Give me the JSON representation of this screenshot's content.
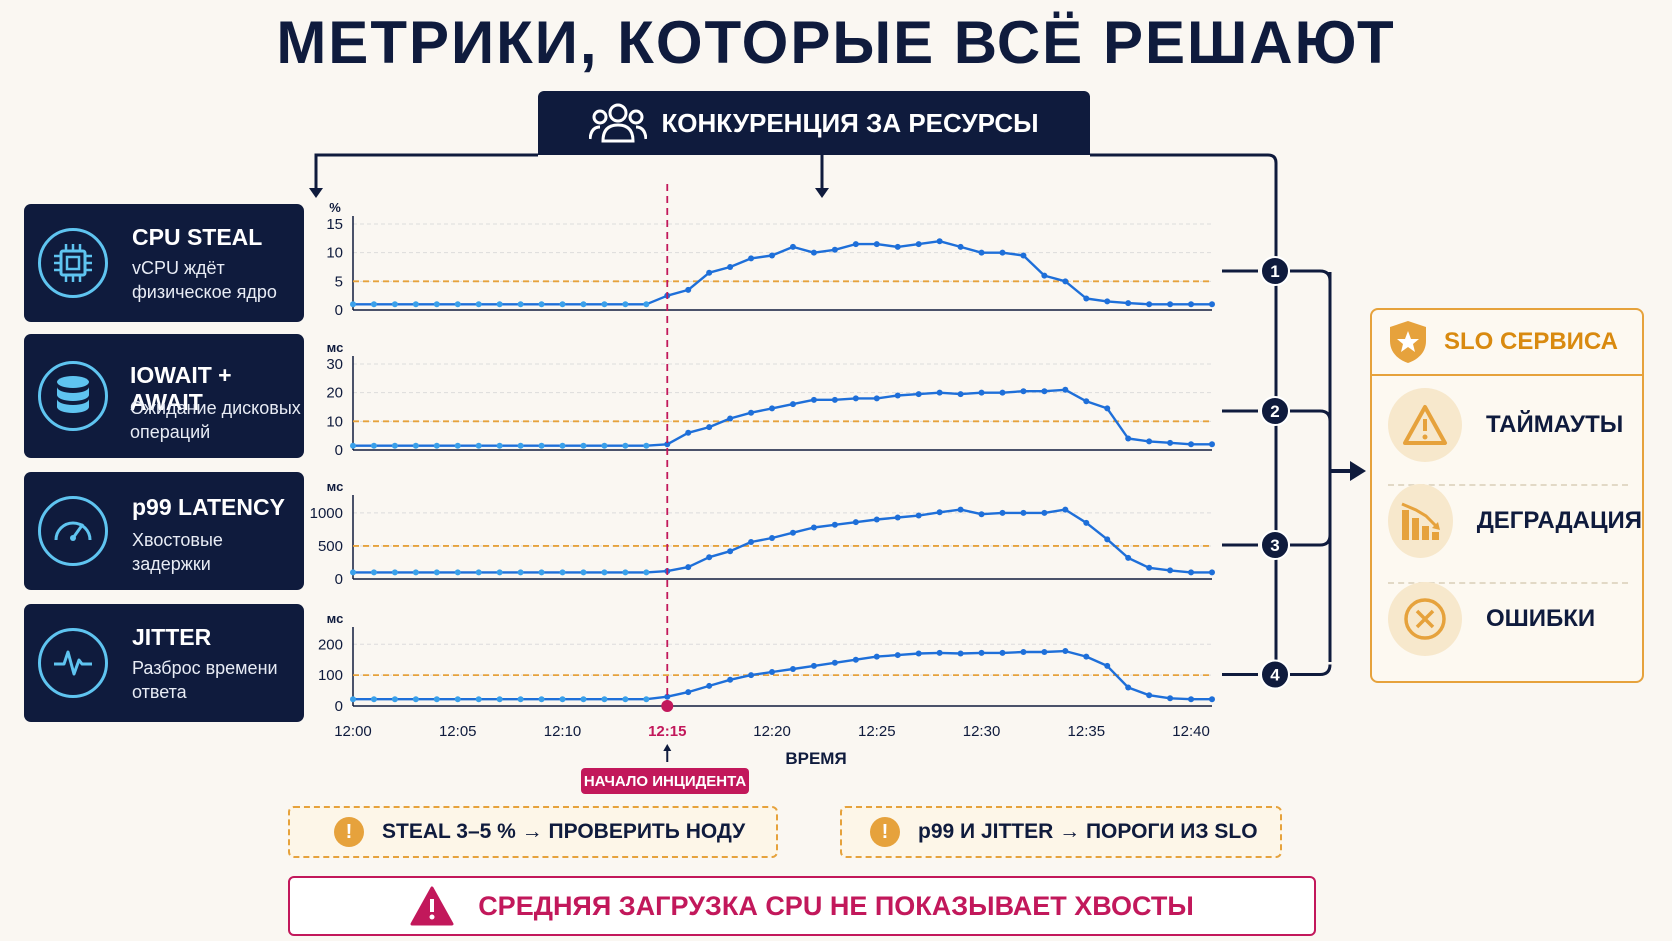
{
  "title": "МЕТРИКИ, КОТОРЫЕ ВСЁ РЕШАЮТ",
  "header": {
    "label": "КОНКУРЕНЦИЯ ЗА РЕСУРСЫ",
    "icon": "users-icon"
  },
  "cards": [
    {
      "title": "CPU STEAL",
      "desc1": "vCPU ждёт",
      "desc2": "физическое ядро",
      "icon": "cpu-chip-icon"
    },
    {
      "title": "IOWAIT + AWAIT",
      "desc1": "Ожидание дисковых",
      "desc2": "операций",
      "icon": "database-icon"
    },
    {
      "title": "p99 LATENCY",
      "desc1": "Хвостовые",
      "desc2": "задержки",
      "icon": "gauge-icon"
    },
    {
      "title": "JITTER",
      "desc1": "Разброс времени",
      "desc2": "ответа",
      "icon": "pulse-icon"
    }
  ],
  "colors": {
    "navy": "#0f1b3d",
    "line": "#1e6fd9",
    "point": "#3aa0ea",
    "threshold": "#e6a23c",
    "incident": "#c2185b",
    "accent": "#5fc4f0"
  },
  "chart_data": [
    {
      "type": "line",
      "unit": "%",
      "yticks": [
        0,
        5,
        10,
        15
      ],
      "ylim": [
        0,
        15
      ],
      "threshold": 5,
      "x": [
        "12:00",
        "12:01",
        "12:02",
        "12:03",
        "12:04",
        "12:05",
        "12:06",
        "12:07",
        "12:08",
        "12:09",
        "12:10",
        "12:11",
        "12:12",
        "12:13",
        "12:14",
        "12:15",
        "12:16",
        "12:17",
        "12:18",
        "12:19",
        "12:20",
        "12:21",
        "12:22",
        "12:23",
        "12:24",
        "12:25",
        "12:26",
        "12:27",
        "12:28",
        "12:29",
        "12:30",
        "12:31",
        "12:32",
        "12:33",
        "12:34",
        "12:35",
        "12:36",
        "12:37",
        "12:38",
        "12:39",
        "12:40",
        "12:41"
      ],
      "values": [
        1,
        1,
        1,
        1,
        1,
        1,
        1,
        1,
        1,
        1,
        1,
        1,
        1,
        1,
        1,
        2.5,
        3.5,
        6.5,
        7.5,
        9,
        9.5,
        11,
        10,
        10.5,
        11.5,
        11.5,
        11,
        11.5,
        12,
        11,
        10,
        10,
        9.5,
        6,
        5,
        2,
        1.5,
        1.2,
        1,
        1,
        1,
        1
      ]
    },
    {
      "type": "line",
      "unit": "мс",
      "yticks": [
        0,
        10,
        20,
        30
      ],
      "ylim": [
        0,
        30
      ],
      "threshold": 10,
      "x": [
        "12:00",
        "12:01",
        "12:02",
        "12:03",
        "12:04",
        "12:05",
        "12:06",
        "12:07",
        "12:08",
        "12:09",
        "12:10",
        "12:11",
        "12:12",
        "12:13",
        "12:14",
        "12:15",
        "12:16",
        "12:17",
        "12:18",
        "12:19",
        "12:20",
        "12:21",
        "12:22",
        "12:23",
        "12:24",
        "12:25",
        "12:26",
        "12:27",
        "12:28",
        "12:29",
        "12:30",
        "12:31",
        "12:32",
        "12:33",
        "12:34",
        "12:35",
        "12:36",
        "12:37",
        "12:38",
        "12:39",
        "12:40",
        "12:41"
      ],
      "values": [
        1.5,
        1.5,
        1.5,
        1.5,
        1.5,
        1.5,
        1.5,
        1.5,
        1.5,
        1.5,
        1.5,
        1.5,
        1.5,
        1.5,
        1.5,
        2,
        6,
        8,
        11,
        13,
        14.5,
        16,
        17.5,
        17.5,
        18,
        18,
        19,
        19.5,
        20,
        19.5,
        20,
        20,
        20.5,
        20.5,
        21,
        17,
        14.5,
        4,
        3,
        2.5,
        2,
        2
      ]
    },
    {
      "type": "line",
      "unit": "мс",
      "yticks": [
        0,
        500,
        1000
      ],
      "ylim": [
        0,
        1150
      ],
      "threshold": 500,
      "x": [
        "12:00",
        "12:01",
        "12:02",
        "12:03",
        "12:04",
        "12:05",
        "12:06",
        "12:07",
        "12:08",
        "12:09",
        "12:10",
        "12:11",
        "12:12",
        "12:13",
        "12:14",
        "12:15",
        "12:16",
        "12:17",
        "12:18",
        "12:19",
        "12:20",
        "12:21",
        "12:22",
        "12:23",
        "12:24",
        "12:25",
        "12:26",
        "12:27",
        "12:28",
        "12:29",
        "12:30",
        "12:31",
        "12:32",
        "12:33",
        "12:34",
        "12:35",
        "12:36",
        "12:37",
        "12:38",
        "12:39",
        "12:40",
        "12:41"
      ],
      "values": [
        100,
        100,
        100,
        100,
        100,
        100,
        100,
        100,
        100,
        100,
        100,
        100,
        100,
        100,
        100,
        120,
        180,
        330,
        420,
        560,
        620,
        700,
        780,
        820,
        860,
        900,
        930,
        960,
        1010,
        1050,
        980,
        1000,
        1000,
        1000,
        1050,
        850,
        600,
        320,
        170,
        130,
        100,
        100
      ]
    },
    {
      "type": "line",
      "unit": "мс",
      "yticks": [
        0,
        100,
        200
      ],
      "ylim": [
        0,
        230
      ],
      "threshold": 100,
      "x": [
        "12:00",
        "12:01",
        "12:02",
        "12:03",
        "12:04",
        "12:05",
        "12:06",
        "12:07",
        "12:08",
        "12:09",
        "12:10",
        "12:11",
        "12:12",
        "12:13",
        "12:14",
        "12:15",
        "12:16",
        "12:17",
        "12:18",
        "12:19",
        "12:20",
        "12:21",
        "12:22",
        "12:23",
        "12:24",
        "12:25",
        "12:26",
        "12:27",
        "12:28",
        "12:29",
        "12:30",
        "12:31",
        "12:32",
        "12:33",
        "12:34",
        "12:35",
        "12:36",
        "12:37",
        "12:38",
        "12:39",
        "12:40",
        "12:41"
      ],
      "values": [
        22,
        22,
        22,
        22,
        22,
        22,
        22,
        22,
        22,
        22,
        22,
        22,
        22,
        22,
        22,
        30,
        45,
        65,
        85,
        100,
        110,
        120,
        130,
        140,
        150,
        160,
        165,
        170,
        172,
        170,
        172,
        172,
        175,
        175,
        178,
        160,
        130,
        60,
        35,
        25,
        22,
        22
      ]
    }
  ],
  "x_ticks": [
    "12:00",
    "12:05",
    "12:10",
    "12:15",
    "12:20",
    "12:25",
    "12:30",
    "12:35",
    "12:40"
  ],
  "x_axis_label": "ВРЕМЯ",
  "incident": {
    "label": "НАЧАЛО ИНЦИДЕНТА",
    "time": "12:15",
    "index": 15
  },
  "numbers": [
    "1",
    "2",
    "3",
    "4"
  ],
  "slo": {
    "title": "SLO СЕРВИСА",
    "items": [
      {
        "label": "ТАЙМАУТЫ",
        "icon": "warning-triangle-icon"
      },
      {
        "label": "ДЕГРАДАЦИЯ",
        "icon": "bar-chart-down-icon"
      },
      {
        "label": "ОШИБКИ",
        "icon": "x-circle-icon"
      }
    ]
  },
  "notes": [
    "STEAL 3–5 % → ПРОВЕРИТЬ НОДУ",
    "p99 И JITTER → ПОРОГИ ИЗ SLO"
  ],
  "bottom": "СРЕДНЯЯ ЗАГРУЗКА CPU НЕ ПОКАЗЫВАЕТ ХВОСТЫ"
}
